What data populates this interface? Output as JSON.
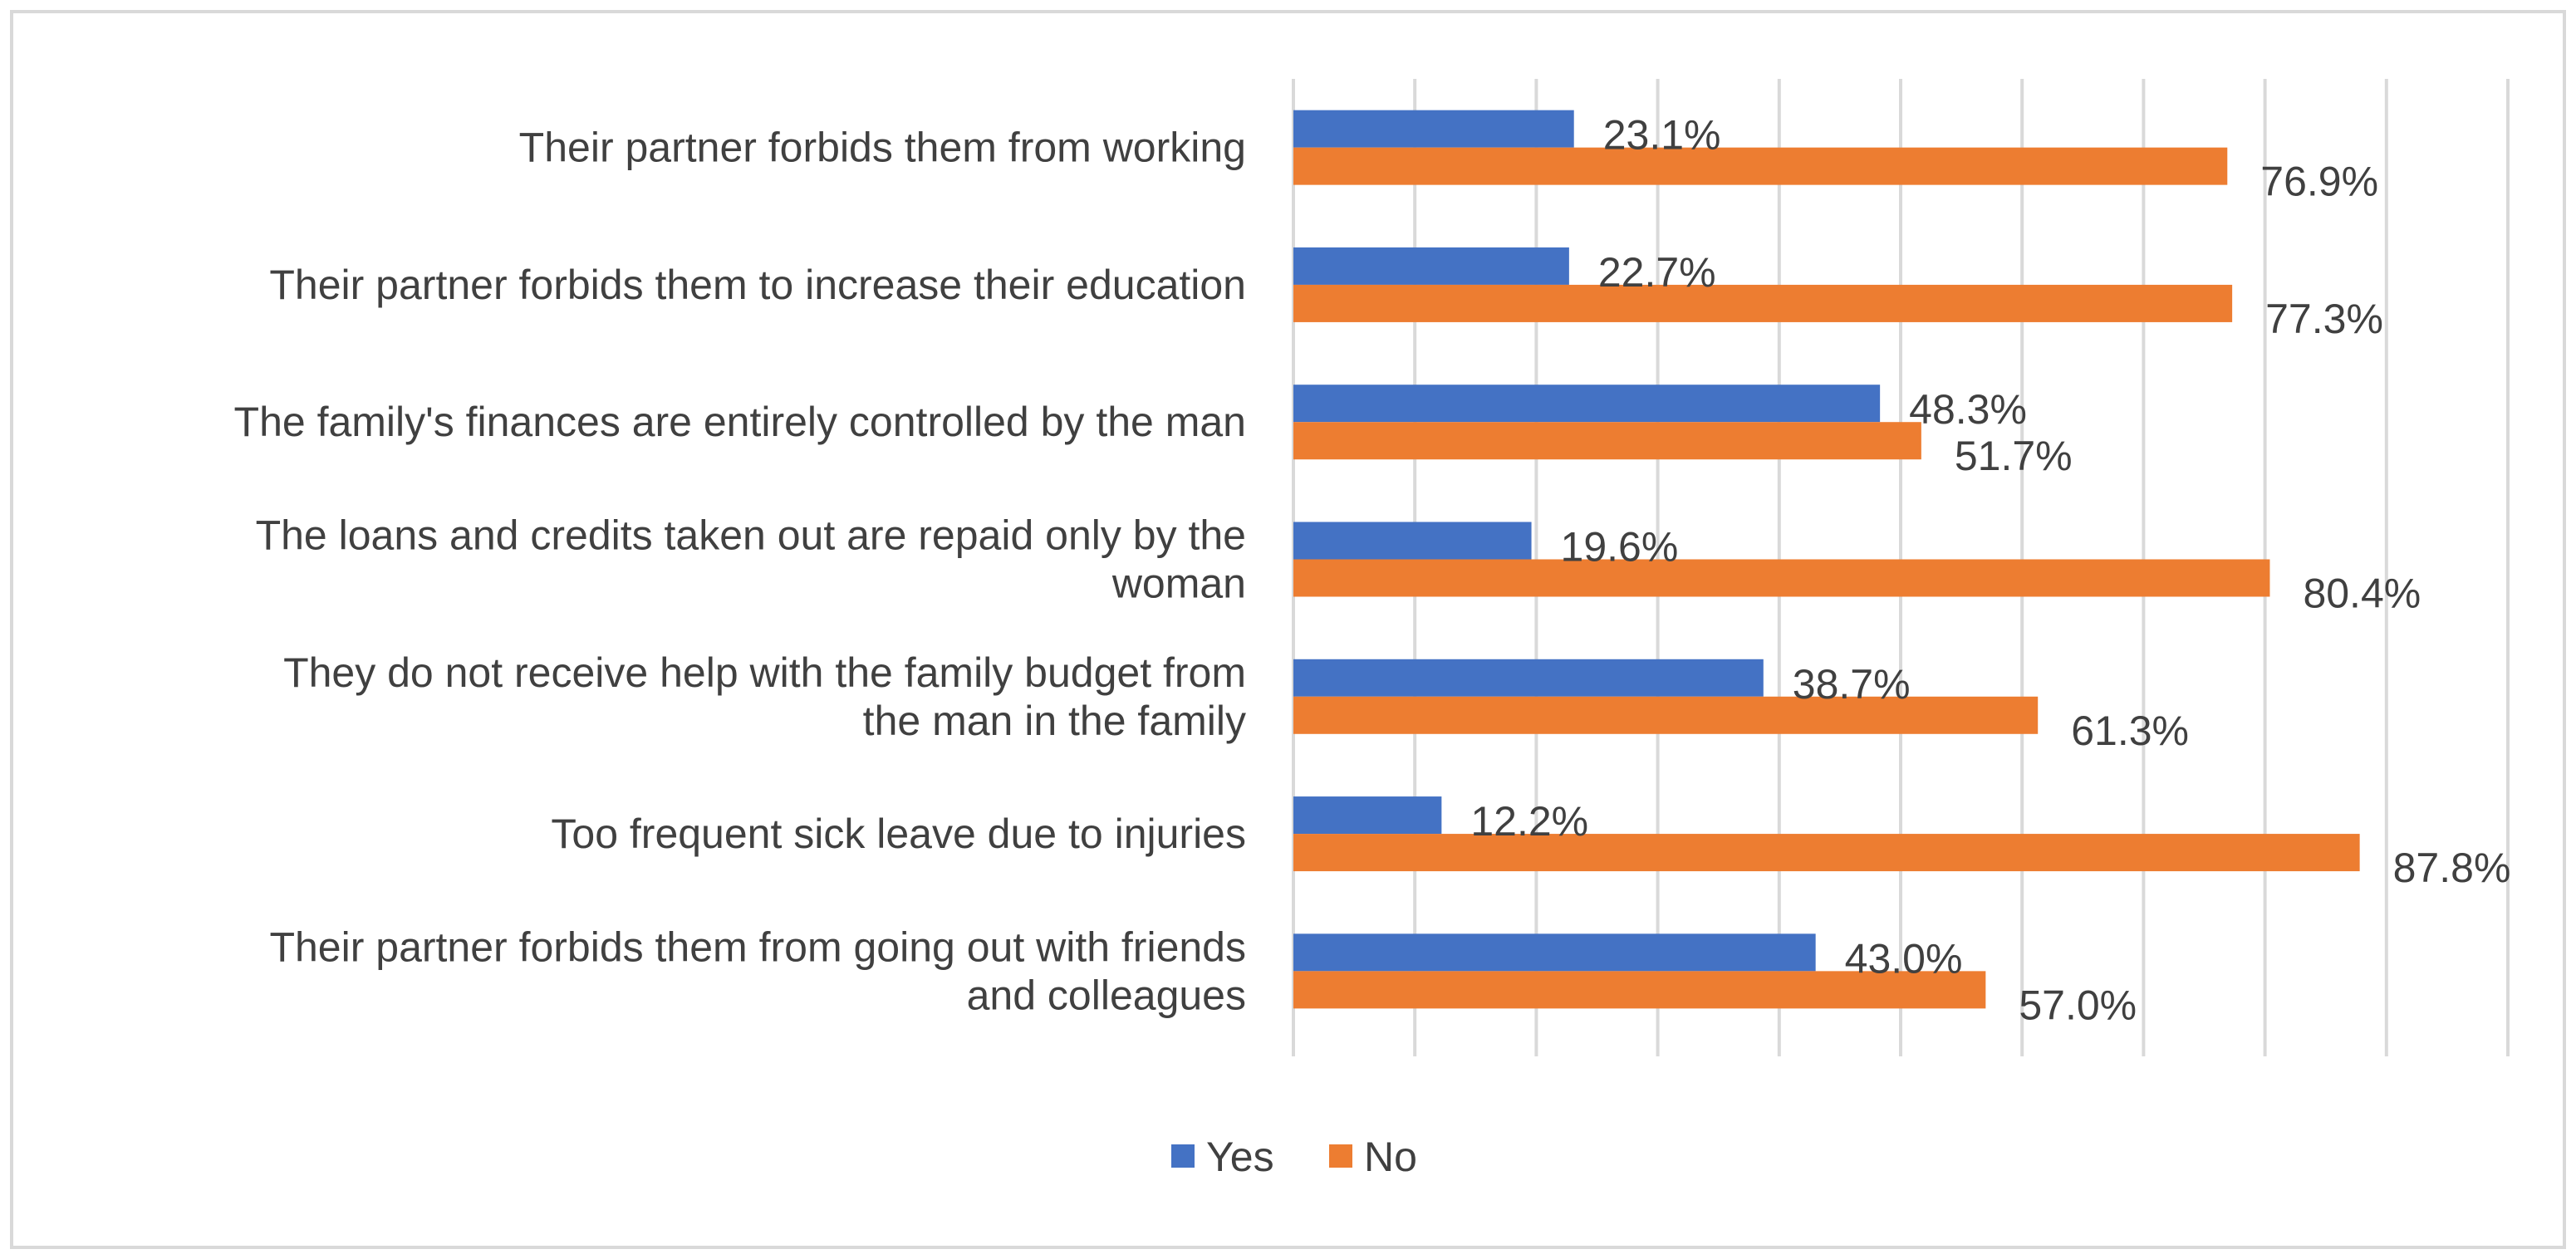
{
  "chart_data": {
    "type": "bar",
    "orientation": "horizontal",
    "categories": [
      [
        "Their partner forbids them from working"
      ],
      [
        "Their partner forbids them to increase their education"
      ],
      [
        "The family's finances are entirely controlled by the man"
      ],
      [
        "The loans and credits taken out are repaid only by the",
        "woman"
      ],
      [
        "They do not receive help with the family budget from",
        "the man in the family"
      ],
      [
        "Too frequent sick leave due to injuries"
      ],
      [
        "Their partner forbids them from going out with friends",
        "and colleagues"
      ]
    ],
    "series": [
      {
        "name": "Yes",
        "color": "#4472C4",
        "values": [
          23.1,
          22.7,
          48.3,
          19.6,
          38.7,
          12.2,
          43.0
        ],
        "labels": [
          "23.1%",
          "22.7%",
          "48.3%",
          "19.6%",
          "38.7%",
          "12.2%",
          "43.0%"
        ]
      },
      {
        "name": "No",
        "color": "#ED7D31",
        "values": [
          76.9,
          77.3,
          51.7,
          80.4,
          61.3,
          87.8,
          57.0
        ],
        "labels": [
          "76.9%",
          "77.3%",
          "51.7%",
          "80.4%",
          "61.3%",
          "87.8%",
          "57.0%"
        ]
      }
    ],
    "xlim": [
      0,
      100
    ],
    "grid": true,
    "gridline_color": "#D9D9D9",
    "legend": "bottom",
    "title": "",
    "xlabel": "",
    "ylabel": ""
  }
}
